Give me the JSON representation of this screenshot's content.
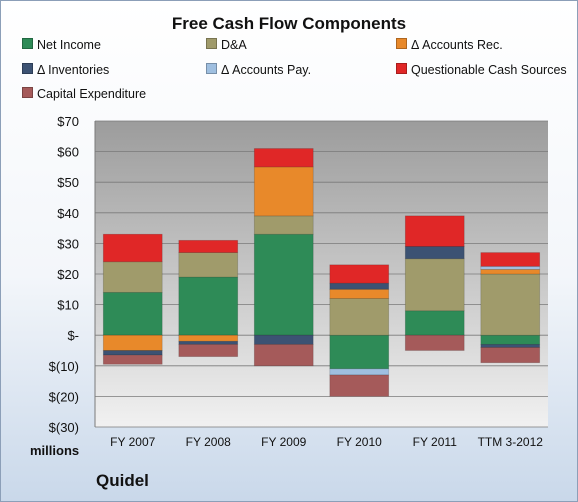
{
  "chart_data": {
    "type": "bar",
    "stacked": true,
    "title": "Free Cash Flow Components",
    "ylabel": "",
    "xlabel": "",
    "units_label": "millions",
    "company": "Quidel",
    "ylim": [
      -30,
      70
    ],
    "yticks": [
      70,
      60,
      50,
      40,
      30,
      20,
      10,
      0,
      -10,
      -20,
      -30
    ],
    "ytick_labels": [
      "$70",
      "$60",
      "$50",
      "$40",
      "$30",
      "$20",
      "$10",
      "$-",
      "$(10)",
      "$(20)",
      "$(30)"
    ],
    "grid": true,
    "legend_position": "top",
    "categories": [
      "FY 2007",
      "FY 2008",
      "FY 2009",
      "FY 2010",
      "FY 2011",
      "TTM 3-2012"
    ],
    "series": [
      {
        "name": "Net Income",
        "color": "#2e8b57",
        "values": [
          14,
          19,
          33,
          -11,
          8,
          -3
        ]
      },
      {
        "name": "D&A",
        "color": "#a09b6b",
        "values": [
          10,
          8,
          6,
          12,
          17,
          20
        ]
      },
      {
        "name": "Δ Accounts Rec.",
        "color": "#e8892a",
        "values": [
          -5,
          -2,
          16,
          3,
          0,
          1.5
        ]
      },
      {
        "name": "Δ Inventories",
        "color": "#3c5273",
        "values": [
          -1.5,
          -1,
          -3,
          2,
          4,
          -1
        ]
      },
      {
        "name": "Δ Accounts Pay.",
        "color": "#9fbfe0",
        "values": [
          0,
          0,
          0,
          -2,
          0,
          1
        ]
      },
      {
        "name": "Questionable Cash Sources",
        "color": "#e02727",
        "values": [
          9,
          4,
          6,
          6,
          10,
          4.5
        ]
      },
      {
        "name": "Capital Expenditure",
        "color": "#a55a5a",
        "values": [
          -3,
          -4,
          -7,
          -7,
          -5,
          -5
        ]
      }
    ]
  }
}
